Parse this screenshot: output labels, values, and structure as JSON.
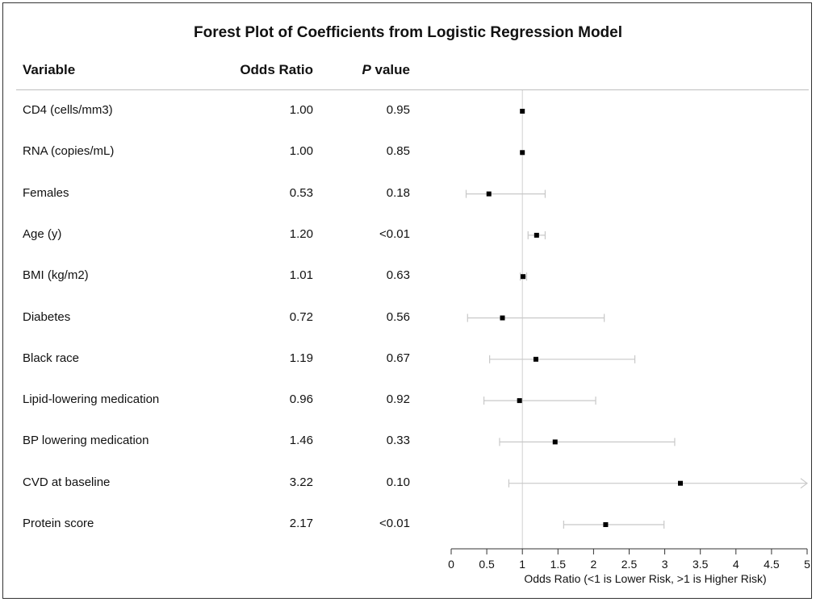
{
  "chart_data": {
    "type": "forest",
    "title": "Forest Plot of Coefficients from Logistic Regression Model",
    "columns": {
      "variable": "Variable",
      "odds_ratio": "Odds Ratio",
      "p_value_italic": "P",
      "p_value_rest": " value"
    },
    "xlabel": "Odds Ratio (<1 is Lower Risk, >1 is Higher Risk)",
    "xlim": [
      0,
      5
    ],
    "xticks": [
      "0",
      "0.5",
      "1",
      "1.5",
      "2",
      "2.5",
      "3",
      "3.5",
      "4",
      "4.5",
      "5"
    ],
    "reference_line": 1,
    "rows": [
      {
        "variable": "CD4 (cells/mm3)",
        "or": 1.0,
        "or_text": "1.00",
        "p": "0.95",
        "lower": 1.0,
        "upper": 1.0,
        "arrow": false
      },
      {
        "variable": "RNA (copies/mL)",
        "or": 1.0,
        "or_text": "1.00",
        "p": "0.85",
        "lower": 1.0,
        "upper": 1.0,
        "arrow": false
      },
      {
        "variable": "Females",
        "or": 0.53,
        "or_text": "0.53",
        "p": "0.18",
        "lower": 0.21,
        "upper": 1.32,
        "arrow": false
      },
      {
        "variable": "Age (y)",
        "or": 1.2,
        "or_text": "1.20",
        "p": "<0.01",
        "lower": 1.08,
        "upper": 1.32,
        "arrow": false
      },
      {
        "variable": "BMI (kg/m2)",
        "or": 1.01,
        "or_text": "1.01",
        "p": "0.63",
        "lower": 0.97,
        "upper": 1.06,
        "arrow": false
      },
      {
        "variable": "Diabetes",
        "or": 0.72,
        "or_text": "0.72",
        "p": "0.56",
        "lower": 0.23,
        "upper": 2.15,
        "arrow": false
      },
      {
        "variable": "Black race",
        "or": 1.19,
        "or_text": "1.19",
        "p": "0.67",
        "lower": 0.54,
        "upper": 2.58,
        "arrow": false
      },
      {
        "variable": "Lipid-lowering medication",
        "or": 0.96,
        "or_text": "0.96",
        "p": "0.92",
        "lower": 0.46,
        "upper": 2.03,
        "arrow": false
      },
      {
        "variable": "BP lowering medication",
        "or": 1.46,
        "or_text": "1.46",
        "p": "0.33",
        "lower": 0.68,
        "upper": 3.14,
        "arrow": false
      },
      {
        "variable": "CVD at baseline",
        "or": 3.22,
        "or_text": "3.22",
        "p": "0.10",
        "lower": 0.81,
        "upper": 5.0,
        "arrow": true
      },
      {
        "variable": "Protein score",
        "or": 2.17,
        "or_text": "2.17",
        "p": "<0.01",
        "lower": 1.58,
        "upper": 2.99,
        "arrow": false
      }
    ],
    "colors": {
      "ci_line": "#c8c8c8",
      "point": "#000000",
      "ref_line": "#d0d0d0",
      "axis": "#333333"
    }
  }
}
